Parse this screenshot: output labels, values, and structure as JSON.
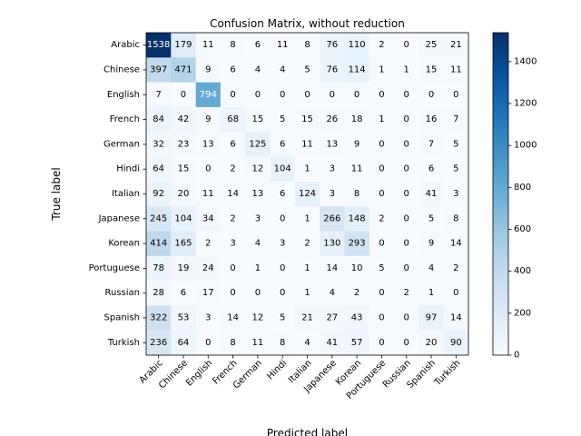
{
  "chart_data": {
    "type": "heatmap",
    "title": "Confusion Matrix, without reduction",
    "xlabel": "Predicted label",
    "ylabel": "True label",
    "labels": [
      "Arabic",
      "Chinese",
      "English",
      "French",
      "German",
      "Hindi",
      "Italian",
      "Japanese",
      "Korean",
      "Portuguese",
      "Russian",
      "Spanish",
      "Turkish"
    ],
    "matrix": [
      [
        1538,
        179,
        11,
        8,
        6,
        11,
        8,
        76,
        110,
        2,
        0,
        25,
        21
      ],
      [
        397,
        471,
        9,
        6,
        4,
        4,
        5,
        76,
        114,
        1,
        1,
        15,
        11
      ],
      [
        7,
        0,
        794,
        0,
        0,
        0,
        0,
        0,
        0,
        0,
        0,
        0,
        0
      ],
      [
        84,
        42,
        9,
        68,
        15,
        5,
        15,
        26,
        18,
        1,
        0,
        16,
        7
      ],
      [
        32,
        23,
        13,
        6,
        125,
        6,
        11,
        13,
        9,
        0,
        0,
        7,
        5
      ],
      [
        64,
        15,
        0,
        2,
        12,
        104,
        1,
        3,
        11,
        0,
        0,
        6,
        5
      ],
      [
        92,
        20,
        11,
        14,
        13,
        6,
        124,
        3,
        8,
        0,
        0,
        41,
        3
      ],
      [
        245,
        104,
        34,
        2,
        3,
        0,
        1,
        266,
        148,
        2,
        0,
        5,
        8
      ],
      [
        414,
        165,
        2,
        3,
        4,
        3,
        2,
        130,
        293,
        0,
        0,
        9,
        14
      ],
      [
        78,
        19,
        24,
        0,
        1,
        0,
        1,
        14,
        10,
        5,
        0,
        4,
        2
      ],
      [
        28,
        6,
        17,
        0,
        0,
        0,
        1,
        4,
        2,
        0,
        2,
        1,
        0
      ],
      [
        322,
        53,
        3,
        14,
        12,
        5,
        21,
        27,
        43,
        0,
        0,
        97,
        14
      ],
      [
        236,
        64,
        0,
        8,
        11,
        8,
        4,
        41,
        57,
        0,
        0,
        20,
        90
      ]
    ],
    "colormap": "Blues",
    "colorbar": {
      "min": 0,
      "max": 1538,
      "ticks": [
        0,
        200,
        400,
        600,
        800,
        1000,
        1200,
        1400
      ]
    },
    "xtick_rotation": 45,
    "grid": false,
    "legend": "none"
  }
}
